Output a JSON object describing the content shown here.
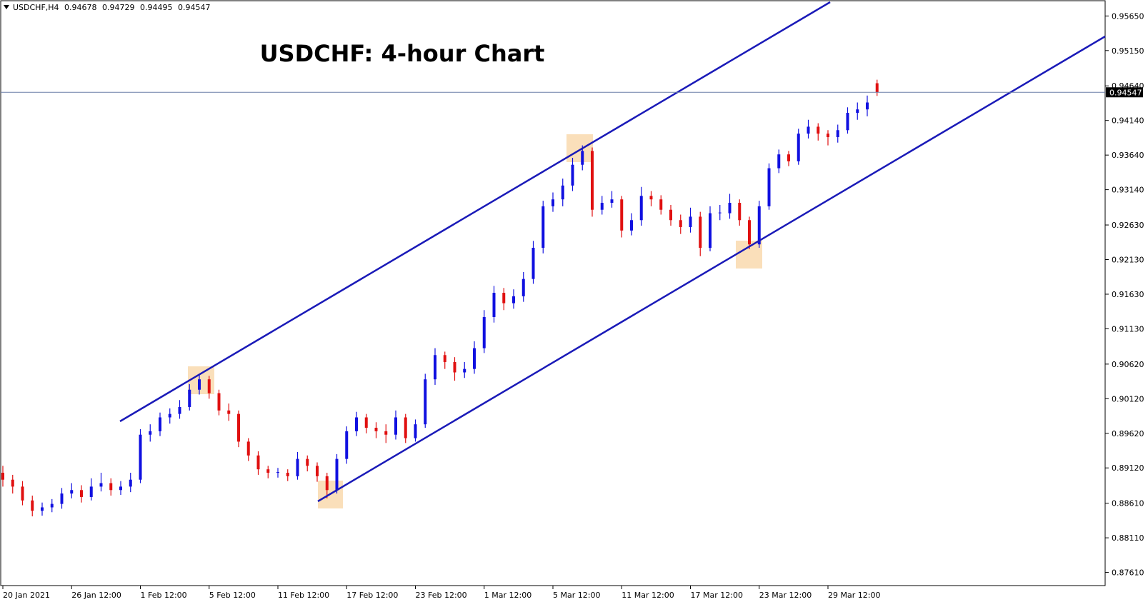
{
  "chart_data": {
    "type": "candlestick",
    "title": "USDCHF: 4-hour Chart",
    "symbol": "USDCHF,H4",
    "up_color": "#1010e0",
    "down_color": "#e01010",
    "x_labels": [
      "20 Jan 2021",
      "26 Jan 12:00",
      "1 Feb 12:00",
      "5 Feb 12:00",
      "11 Feb 12:00",
      "17 Feb 12:00",
      "23 Feb 12:00",
      "1 Mar 12:00",
      "5 Mar 12:00",
      "11 Mar 12:00",
      "17 Mar 12:00",
      "23 Mar 12:00",
      "29 Mar 12:00"
    ],
    "ylim": [
      0.8742,
      0.9586
    ],
    "yticks": [
      {
        "value": 0.9565,
        "label": "0.95650"
      },
      {
        "value": 0.9515,
        "label": "0.95150"
      },
      {
        "value": 0.9464,
        "label": "0.94640"
      },
      {
        "value": 0.9414,
        "label": "0.94140"
      },
      {
        "value": 0.9364,
        "label": "0.93640"
      },
      {
        "value": 0.9314,
        "label": "0.93140"
      },
      {
        "value": 0.9263,
        "label": "0.92630"
      },
      {
        "value": 0.9213,
        "label": "0.92130"
      },
      {
        "value": 0.9163,
        "label": "0.91630"
      },
      {
        "value": 0.9113,
        "label": "0.91130"
      },
      {
        "value": 0.9062,
        "label": "0.90620"
      },
      {
        "value": 0.9012,
        "label": "0.90120"
      },
      {
        "value": 0.8962,
        "label": "0.89620"
      },
      {
        "value": 0.8912,
        "label": "0.89120"
      },
      {
        "value": 0.8861,
        "label": "0.88610"
      },
      {
        "value": 0.8811,
        "label": "0.88110"
      },
      {
        "value": 0.8761,
        "label": "0.87610"
      }
    ],
    "ohlc": [
      [
        0.8905,
        0.8915,
        0.8885,
        0.8895
      ],
      [
        0.8895,
        0.8902,
        0.8875,
        0.8885
      ],
      [
        0.8885,
        0.8893,
        0.8858,
        0.8865
      ],
      [
        0.8865,
        0.8872,
        0.8842,
        0.885
      ],
      [
        0.885,
        0.8862,
        0.8843,
        0.8855
      ],
      [
        0.8855,
        0.8867,
        0.8848,
        0.886
      ],
      [
        0.886,
        0.8883,
        0.8853,
        0.8875
      ],
      [
        0.8875,
        0.889,
        0.8868,
        0.888
      ],
      [
        0.888,
        0.8887,
        0.8862,
        0.887
      ],
      [
        0.887,
        0.8897,
        0.8865,
        0.8885
      ],
      [
        0.8885,
        0.8905,
        0.8878,
        0.889
      ],
      [
        0.889,
        0.8897,
        0.8872,
        0.888
      ],
      [
        0.888,
        0.8893,
        0.8873,
        0.8885
      ],
      [
        0.8885,
        0.8905,
        0.8877,
        0.8895
      ],
      [
        0.8895,
        0.8968,
        0.889,
        0.896
      ],
      [
        0.896,
        0.8975,
        0.895,
        0.8965
      ],
      [
        0.8965,
        0.8992,
        0.8958,
        0.8985
      ],
      [
        0.8985,
        0.8998,
        0.8976,
        0.899
      ],
      [
        0.899,
        0.901,
        0.8983,
        0.9
      ],
      [
        0.9,
        0.9033,
        0.8995,
        0.9025
      ],
      [
        0.9025,
        0.9048,
        0.9018,
        0.904
      ],
      [
        0.904,
        0.9045,
        0.9012,
        0.902
      ],
      [
        0.902,
        0.9025,
        0.8988,
        0.8995
      ],
      [
        0.8995,
        0.9005,
        0.898,
        0.899
      ],
      [
        0.899,
        0.8995,
        0.8942,
        0.895
      ],
      [
        0.895,
        0.8955,
        0.8922,
        0.893
      ],
      [
        0.893,
        0.8936,
        0.8902,
        0.891
      ],
      [
        0.891,
        0.8915,
        0.8897,
        0.8905
      ],
      [
        0.8905,
        0.8912,
        0.8898,
        0.8906
      ],
      [
        0.8905,
        0.891,
        0.8893,
        0.89
      ],
      [
        0.89,
        0.8935,
        0.8895,
        0.8925
      ],
      [
        0.8925,
        0.893,
        0.8907,
        0.8915
      ],
      [
        0.8915,
        0.892,
        0.8892,
        0.89
      ],
      [
        0.89,
        0.8905,
        0.8868,
        0.888
      ],
      [
        0.888,
        0.8932,
        0.8875,
        0.8925
      ],
      [
        0.8925,
        0.8972,
        0.8918,
        0.8965
      ],
      [
        0.8965,
        0.8993,
        0.8958,
        0.8985
      ],
      [
        0.8985,
        0.899,
        0.8962,
        0.897
      ],
      [
        0.897,
        0.8978,
        0.8955,
        0.8965
      ],
      [
        0.8965,
        0.8975,
        0.8948,
        0.896
      ],
      [
        0.896,
        0.8995,
        0.8953,
        0.8985
      ],
      [
        0.8985,
        0.899,
        0.8948,
        0.8955
      ],
      [
        0.8955,
        0.8982,
        0.895,
        0.8975
      ],
      [
        0.8975,
        0.9048,
        0.897,
        0.904
      ],
      [
        0.904,
        0.9085,
        0.9032,
        0.9075
      ],
      [
        0.9075,
        0.908,
        0.9055,
        0.9065
      ],
      [
        0.9065,
        0.9072,
        0.9038,
        0.905
      ],
      [
        0.905,
        0.9065,
        0.9042,
        0.9055
      ],
      [
        0.9055,
        0.9095,
        0.9048,
        0.9085
      ],
      [
        0.9085,
        0.914,
        0.9078,
        0.913
      ],
      [
        0.913,
        0.9175,
        0.9122,
        0.9165
      ],
      [
        0.9165,
        0.9172,
        0.914,
        0.915
      ],
      [
        0.915,
        0.917,
        0.9142,
        0.916
      ],
      [
        0.916,
        0.9195,
        0.9152,
        0.9185
      ],
      [
        0.9185,
        0.924,
        0.9178,
        0.923
      ],
      [
        0.923,
        0.9298,
        0.9222,
        0.929
      ],
      [
        0.929,
        0.931,
        0.9282,
        0.93
      ],
      [
        0.93,
        0.933,
        0.929,
        0.932
      ],
      [
        0.932,
        0.936,
        0.9312,
        0.935
      ],
      [
        0.935,
        0.9378,
        0.9342,
        0.937
      ],
      [
        0.937,
        0.9375,
        0.9275,
        0.9285
      ],
      [
        0.9285,
        0.9305,
        0.9278,
        0.9295
      ],
      [
        0.9295,
        0.9312,
        0.9288,
        0.93
      ],
      [
        0.93,
        0.9305,
        0.9245,
        0.9255
      ],
      [
        0.9255,
        0.928,
        0.9248,
        0.927
      ],
      [
        0.927,
        0.9318,
        0.9262,
        0.9305
      ],
      [
        0.9305,
        0.9312,
        0.929,
        0.93
      ],
      [
        0.93,
        0.9306,
        0.9278,
        0.9285
      ],
      [
        0.9285,
        0.9292,
        0.9262,
        0.927
      ],
      [
        0.927,
        0.9278,
        0.925,
        0.926
      ],
      [
        0.926,
        0.9288,
        0.9252,
        0.9275
      ],
      [
        0.9275,
        0.9282,
        0.9218,
        0.923
      ],
      [
        0.923,
        0.929,
        0.9225,
        0.928
      ],
      [
        0.928,
        0.9292,
        0.927,
        0.9281
      ],
      [
        0.928,
        0.9308,
        0.9272,
        0.9295
      ],
      [
        0.9295,
        0.93,
        0.9262,
        0.927
      ],
      [
        0.927,
        0.9275,
        0.9228,
        0.9235
      ],
      [
        0.9235,
        0.9298,
        0.923,
        0.929
      ],
      [
        0.929,
        0.9352,
        0.9285,
        0.9345
      ],
      [
        0.9345,
        0.9372,
        0.9338,
        0.9365
      ],
      [
        0.9365,
        0.937,
        0.9348,
        0.9355
      ],
      [
        0.9355,
        0.9402,
        0.935,
        0.9395
      ],
      [
        0.9395,
        0.9415,
        0.9388,
        0.9405
      ],
      [
        0.9405,
        0.941,
        0.9385,
        0.9395
      ],
      [
        0.9395,
        0.94,
        0.9378,
        0.939
      ],
      [
        0.939,
        0.9408,
        0.9382,
        0.94
      ],
      [
        0.94,
        0.9433,
        0.9395,
        0.9425
      ],
      [
        0.9425,
        0.944,
        0.9415,
        0.943
      ],
      [
        0.943,
        0.945,
        0.942,
        0.944
      ],
      [
        0.94678,
        0.94729,
        0.94495,
        0.94547
      ]
    ]
  }
}
